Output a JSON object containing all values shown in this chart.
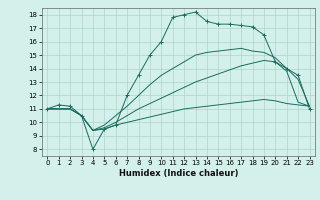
{
  "xlabel": "Humidex (Indice chaleur)",
  "ylabel": "",
  "bg_color": "#d4f0ea",
  "grid_color": "#aed4cc",
  "line_color": "#1a6b60",
  "x_ticks": [
    0,
    1,
    2,
    3,
    4,
    5,
    6,
    7,
    8,
    9,
    10,
    11,
    12,
    13,
    14,
    15,
    16,
    17,
    18,
    19,
    20,
    21,
    22,
    23
  ],
  "y_ticks": [
    8,
    9,
    10,
    11,
    12,
    13,
    14,
    15,
    16,
    17,
    18
  ],
  "ylim": [
    7.5,
    18.5
  ],
  "xlim": [
    -0.5,
    23.5
  ],
  "lines": [
    {
      "x": [
        0,
        1,
        2,
        3,
        4,
        5,
        6,
        7,
        8,
        9,
        10,
        11,
        12,
        13,
        14,
        15,
        16,
        17,
        18,
        19,
        20,
        21,
        22,
        23
      ],
      "y": [
        11.0,
        11.3,
        11.2,
        10.5,
        8.0,
        9.5,
        9.8,
        12.0,
        13.5,
        15.0,
        16.0,
        17.8,
        18.0,
        18.2,
        17.5,
        17.3,
        17.3,
        17.2,
        17.1,
        16.5,
        14.5,
        14.0,
        13.5,
        11.0
      ],
      "marker": "+"
    },
    {
      "x": [
        0,
        1,
        2,
        3,
        4,
        5,
        6,
        7,
        8,
        9,
        10,
        11,
        12,
        13,
        14,
        15,
        16,
        17,
        18,
        19,
        20,
        21,
        22,
        23
      ],
      "y": [
        11.0,
        11.0,
        11.0,
        10.5,
        9.4,
        9.8,
        10.5,
        11.2,
        12.0,
        12.8,
        13.5,
        14.0,
        14.5,
        15.0,
        15.2,
        15.3,
        15.4,
        15.5,
        15.3,
        15.2,
        14.8,
        14.0,
        13.2,
        11.2
      ],
      "marker": null
    },
    {
      "x": [
        0,
        1,
        2,
        3,
        4,
        5,
        6,
        7,
        8,
        9,
        10,
        11,
        12,
        13,
        14,
        15,
        16,
        17,
        18,
        19,
        20,
        21,
        22,
        23
      ],
      "y": [
        11.0,
        11.0,
        11.0,
        10.5,
        9.4,
        9.6,
        10.0,
        10.5,
        11.0,
        11.4,
        11.8,
        12.2,
        12.6,
        13.0,
        13.3,
        13.6,
        13.9,
        14.2,
        14.4,
        14.6,
        14.5,
        13.8,
        11.5,
        11.2
      ],
      "marker": null
    },
    {
      "x": [
        0,
        1,
        2,
        3,
        4,
        5,
        6,
        7,
        8,
        9,
        10,
        11,
        12,
        13,
        14,
        15,
        16,
        17,
        18,
        19,
        20,
        21,
        22,
        23
      ],
      "y": [
        11.0,
        11.0,
        11.0,
        10.5,
        9.4,
        9.5,
        9.8,
        10.0,
        10.2,
        10.4,
        10.6,
        10.8,
        11.0,
        11.1,
        11.2,
        11.3,
        11.4,
        11.5,
        11.6,
        11.7,
        11.6,
        11.4,
        11.3,
        11.2
      ],
      "marker": null
    }
  ]
}
